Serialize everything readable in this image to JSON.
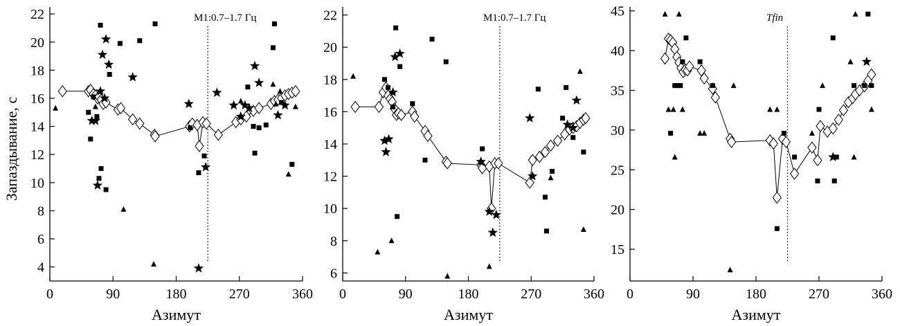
{
  "chart_data": [
    {
      "type": "scatter",
      "title": "",
      "xlabel": "Азимут",
      "ylabel": "Запаздывание, с",
      "annotation": "М1:0.7–1.7 Гц",
      "annotation_italic": false,
      "xlim": [
        0,
        360
      ],
      "ylim": [
        3,
        22.5
      ],
      "xticks": [
        0,
        90,
        180,
        270,
        360
      ],
      "yticks": [
        4,
        6,
        8,
        10,
        12,
        14,
        16,
        18,
        20,
        22
      ],
      "vline_x": 225,
      "series": [
        {
          "marker": "diamond-line",
          "points": [
            [
              18,
              16.5
            ],
            [
              55,
              16.5
            ],
            [
              58,
              16.6
            ],
            [
              62,
              16.3
            ],
            [
              65,
              16.2
            ],
            [
              68,
              16.0
            ],
            [
              70,
              16.1
            ],
            [
              73,
              15.9
            ],
            [
              76,
              15.6
            ],
            [
              80,
              15.7
            ],
            [
              97,
              15.2
            ],
            [
              101,
              15.3
            ],
            [
              118,
              14.5
            ],
            [
              128,
              14.2
            ],
            [
              149,
              13.4
            ],
            [
              150,
              13.3
            ],
            [
              199,
              14.0
            ],
            [
              203,
              14.2
            ],
            [
              210,
              14.1
            ],
            [
              213,
              12.6
            ],
            [
              218,
              14.3
            ],
            [
              223,
              14.2
            ],
            [
              240,
              13.4
            ],
            [
              265,
              14.3
            ],
            [
              272,
              14.5
            ],
            [
              280,
              14.7
            ],
            [
              290,
              15.1
            ],
            [
              298,
              15.3
            ],
            [
              315,
              15.6
            ],
            [
              320,
              15.8
            ],
            [
              325,
              15.9
            ],
            [
              330,
              16.0
            ],
            [
              335,
              16.2
            ],
            [
              340,
              16.3
            ],
            [
              345,
              16.4
            ],
            [
              350,
              16.5
            ]
          ]
        },
        {
          "marker": "square",
          "points": [
            [
              55,
              15.0
            ],
            [
              58,
              13.1
            ],
            [
              62,
              16.1
            ],
            [
              67,
              14.7
            ],
            [
              70,
              10.3
            ],
            [
              72,
              21.2
            ],
            [
              73,
              11.0
            ],
            [
              80,
              9.5
            ],
            [
              85,
              17.7
            ],
            [
              100,
              19.9
            ],
            [
              128,
              20.1
            ],
            [
              150,
              21.3
            ],
            [
              200,
              13.9
            ],
            [
              212,
              10.7
            ],
            [
              220,
              11.9
            ],
            [
              282,
              16.8
            ],
            [
              290,
              14.0
            ],
            [
              292,
              12.1
            ],
            [
              298,
              13.9
            ],
            [
              308,
              14.1
            ],
            [
              318,
              19.6
            ],
            [
              320,
              21.3
            ],
            [
              330,
              15.7
            ],
            [
              345,
              11.3
            ]
          ]
        },
        {
          "marker": "triangle",
          "points": [
            [
              8,
              15.3
            ],
            [
              65,
              15.4
            ],
            [
              105,
              8.1
            ],
            [
              148,
              4.2
            ],
            [
              272,
              15.8
            ],
            [
              318,
              17.0
            ],
            [
              322,
              15.6
            ],
            [
              328,
              16.5
            ],
            [
              340,
              10.6
            ],
            [
              350,
              15.4
            ]
          ]
        },
        {
          "marker": "star",
          "points": [
            [
              60,
              14.4
            ],
            [
              65,
              14.4
            ],
            [
              68,
              9.8
            ],
            [
              72,
              16.5
            ],
            [
              75,
              19.1
            ],
            [
              78,
              16.0
            ],
            [
              80,
              20.2
            ],
            [
              84,
              18.4
            ],
            [
              118,
              17.5
            ],
            [
              198,
              15.6
            ],
            [
              212,
              3.9
            ],
            [
              222,
              11.1
            ],
            [
              238,
              16.4
            ],
            [
              262,
              15.5
            ],
            [
              272,
              14.7
            ],
            [
              278,
              15.5
            ],
            [
              284,
              15.3
            ],
            [
              292,
              18.3
            ],
            [
              298,
              17.1
            ],
            [
              325,
              14.8
            ],
            [
              335,
              15.5
            ]
          ]
        }
      ]
    },
    {
      "type": "scatter",
      "title": "",
      "xlabel": "Азимут",
      "ylabel": "",
      "annotation": "М1:0.7–1.7 Гц",
      "annotation_italic": false,
      "xlim": [
        0,
        360
      ],
      "ylim": [
        5.5,
        22.5
      ],
      "xticks": [
        0,
        90,
        180,
        270,
        360
      ],
      "yticks": [
        6,
        8,
        10,
        12,
        14,
        16,
        18,
        20,
        22
      ],
      "vline_x": 225,
      "series": [
        {
          "marker": "diamond-line",
          "points": [
            [
              18,
              16.3
            ],
            [
              52,
              16.3
            ],
            [
              58,
              17.2
            ],
            [
              62,
              17.5
            ],
            [
              65,
              17.0
            ],
            [
              68,
              16.8
            ],
            [
              71,
              16.6
            ],
            [
              74,
              16.2
            ],
            [
              77,
              15.8
            ],
            [
              80,
              15.9
            ],
            [
              84,
              15.8
            ],
            [
              100,
              16.0
            ],
            [
              103,
              15.7
            ],
            [
              118,
              14.8
            ],
            [
              122,
              14.5
            ],
            [
              148,
              12.9
            ],
            [
              150,
              12.8
            ],
            [
              198,
              12.7
            ],
            [
              200,
              12.5
            ],
            [
              210,
              12.6
            ],
            [
              213,
              10.0
            ],
            [
              218,
              12.8
            ],
            [
              223,
              12.8
            ],
            [
              268,
              11.6
            ],
            [
              272,
              13.0
            ],
            [
              282,
              13.2
            ],
            [
              290,
              13.5
            ],
            [
              298,
              13.9
            ],
            [
              308,
              14.2
            ],
            [
              318,
              14.6
            ],
            [
              325,
              14.9
            ],
            [
              330,
              15.0
            ],
            [
              335,
              15.1
            ],
            [
              340,
              15.3
            ],
            [
              345,
              15.5
            ],
            [
              348,
              15.6
            ]
          ]
        },
        {
          "marker": "square",
          "points": [
            [
              60,
              18.0
            ],
            [
              65,
              17.5
            ],
            [
              72,
              16.3
            ],
            [
              76,
              21.2
            ],
            [
              78,
              9.5
            ],
            [
              82,
              18.8
            ],
            [
              100,
              16.5
            ],
            [
              118,
              13.0
            ],
            [
              128,
              20.5
            ],
            [
              148,
              19.1
            ],
            [
              200,
              13.7
            ],
            [
              280,
              17.4
            ],
            [
              290,
              10.7
            ],
            [
              292,
              8.6
            ],
            [
              300,
              12.3
            ],
            [
              315,
              15.6
            ],
            [
              320,
              17.5
            ],
            [
              330,
              14.4
            ],
            [
              345,
              13.5
            ]
          ]
        },
        {
          "marker": "triangle",
          "points": [
            [
              15,
              18.2
            ],
            [
              50,
              7.3
            ],
            [
              70,
              8.0
            ],
            [
              150,
              5.8
            ],
            [
              210,
              6.4
            ],
            [
              298,
              11.9
            ],
            [
              340,
              18.5
            ],
            [
              345,
              8.7
            ]
          ]
        },
        {
          "marker": "star",
          "points": [
            [
              60,
              14.2
            ],
            [
              62,
              13.5
            ],
            [
              66,
              14.3
            ],
            [
              72,
              17.2
            ],
            [
              75,
              19.4
            ],
            [
              82,
              19.6
            ],
            [
              198,
              12.9
            ],
            [
              210,
              9.8
            ],
            [
              215,
              8.5
            ],
            [
              220,
              9.6
            ],
            [
              268,
              15.6
            ],
            [
              272,
              12.0
            ],
            [
              322,
              15.2
            ],
            [
              330,
              15.0
            ],
            [
              335,
              16.7
            ]
          ]
        }
      ]
    },
    {
      "type": "scatter",
      "title": "",
      "xlabel": "Азимут",
      "ylabel": "",
      "annotation": "Tfin",
      "annotation_italic": true,
      "xlim": [
        0,
        360
      ],
      "ylim": [
        11,
        45.5
      ],
      "xticks": [
        0,
        90,
        180,
        270,
        360
      ],
      "yticks": [
        15,
        20,
        25,
        30,
        35,
        40,
        45
      ],
      "vline_x": 225,
      "series": [
        {
          "marker": "diamond-line",
          "points": [
            [
              50,
              39.0
            ],
            [
              55,
              41.5
            ],
            [
              58,
              41.3
            ],
            [
              61,
              41.0
            ],
            [
              64,
              40.2
            ],
            [
              67,
              39.2
            ],
            [
              70,
              38.5
            ],
            [
              73,
              37.8
            ],
            [
              76,
              37.3
            ],
            [
              79,
              37.6
            ],
            [
              82,
              37.5
            ],
            [
              85,
              38.0
            ],
            [
              102,
              37.5
            ],
            [
              106,
              36.5
            ],
            [
              118,
              35.2
            ],
            [
              122,
              34.1
            ],
            [
              143,
              28.9
            ],
            [
              145,
              28.5
            ],
            [
              200,
              28.7
            ],
            [
              205,
              28.3
            ],
            [
              210,
              21.5
            ],
            [
              218,
              28.9
            ],
            [
              223,
              28.5
            ],
            [
              235,
              24.5
            ],
            [
              260,
              27.8
            ],
            [
              268,
              26.2
            ],
            [
              272,
              30.5
            ],
            [
              282,
              29.8
            ],
            [
              290,
              30.2
            ],
            [
              298,
              31.3
            ],
            [
              305,
              32.5
            ],
            [
              312,
              33.5
            ],
            [
              318,
              34.0
            ],
            [
              322,
              34.5
            ],
            [
              328,
              35.0
            ],
            [
              335,
              35.5
            ],
            [
              340,
              36.2
            ],
            [
              345,
              37.0
            ]
          ]
        },
        {
          "marker": "square",
          "points": [
            [
              58,
              29.6
            ],
            [
              64,
              35.6
            ],
            [
              68,
              35.6
            ],
            [
              72,
              35.6
            ],
            [
              75,
              38.6
            ],
            [
              80,
              41.6
            ],
            [
              100,
              38.6
            ],
            [
              118,
              35.6
            ],
            [
              210,
              17.6
            ],
            [
              220,
              29.6
            ],
            [
              235,
              26.6
            ],
            [
              268,
              23.6
            ],
            [
              270,
              32.6
            ],
            [
              290,
              41.6
            ],
            [
              292,
              23.6
            ],
            [
              295,
              26.6
            ],
            [
              320,
              35.6
            ],
            [
              335,
              35.6
            ],
            [
              340,
              44.6
            ],
            [
              345,
              35.6
            ]
          ]
        },
        {
          "marker": "triangle",
          "points": [
            [
              50,
              44.6
            ],
            [
              55,
              32.6
            ],
            [
              62,
              32.6
            ],
            [
              64,
              26.6
            ],
            [
              70,
              44.6
            ],
            [
              75,
              32.6
            ],
            [
              100,
              29.6
            ],
            [
              106,
              29.6
            ],
            [
              143,
              12.4
            ],
            [
              148,
              35.6
            ],
            [
              200,
              32.6
            ],
            [
              210,
              32.6
            ],
            [
              260,
              29.6
            ],
            [
              275,
              35.6
            ],
            [
              315,
              38.6
            ],
            [
              320,
              26.6
            ],
            [
              322,
              44.6
            ],
            [
              345,
              32.6
            ]
          ]
        },
        {
          "marker": "star",
          "points": [
            [
              290,
              26.6
            ],
            [
              338,
              38.6
            ]
          ]
        }
      ]
    }
  ]
}
